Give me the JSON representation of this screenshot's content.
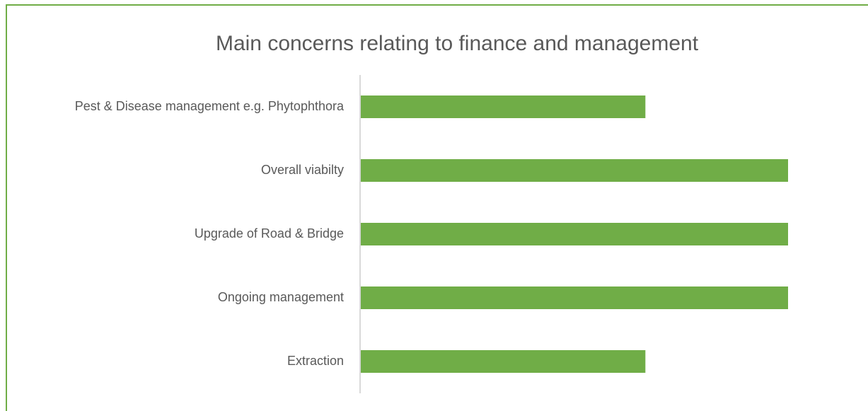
{
  "chart_data": {
    "type": "bar",
    "orientation": "horizontal",
    "title": "Main concerns relating to finance and management",
    "categories": [
      "Pest & Disease management e.g. Phytophthora",
      "Overall viabilty",
      "Upgrade of Road & Bridge",
      "Ongoing management",
      "Extraction"
    ],
    "values": [
      2,
      3,
      3,
      3,
      2
    ],
    "color": "#70ad47",
    "xlim": [
      0,
      3
    ]
  }
}
